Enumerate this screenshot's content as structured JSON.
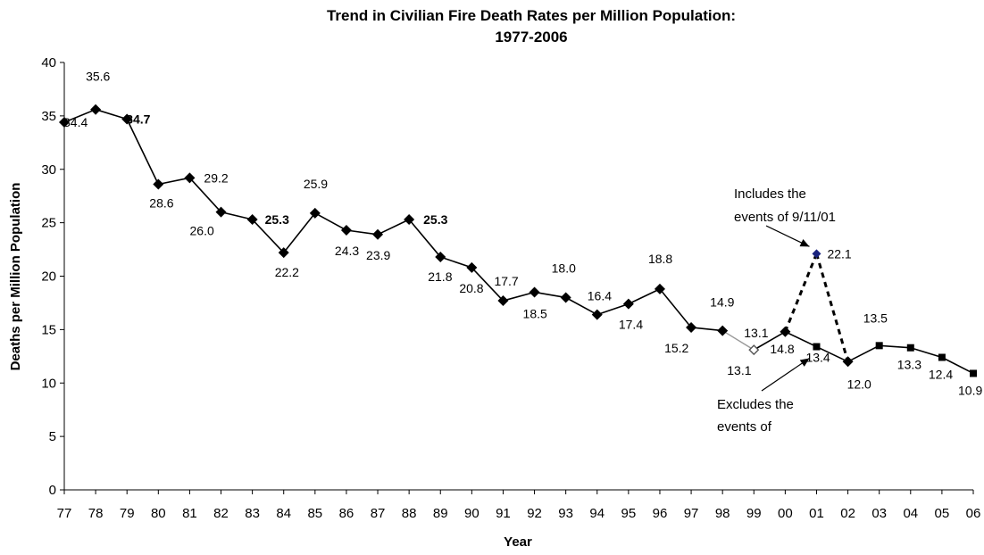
{
  "chart_data": {
    "type": "line",
    "title_lines": [
      "Trend in Civilian Fire Death Rates per Million Population:",
      "1977-2006"
    ],
    "xlabel": "Year",
    "ylabel": "Deaths per Million Population",
    "ylim": [
      0,
      40
    ],
    "yticks": [
      0,
      5,
      10,
      15,
      20,
      25,
      30,
      35,
      40
    ],
    "categories": [
      "77",
      "78",
      "79",
      "80",
      "81",
      "82",
      "83",
      "84",
      "85",
      "86",
      "87",
      "88",
      "89",
      "90",
      "91",
      "92",
      "93",
      "94",
      "95",
      "96",
      "97",
      "98",
      "99",
      "00",
      "01",
      "02",
      "03",
      "04",
      "05",
      "06"
    ],
    "series": [
      {
        "values": [
          34.4,
          35.6,
          34.7,
          28.6,
          29.2,
          26.0,
          25.3,
          22.2,
          25.9,
          24.3,
          23.9,
          25.3,
          21.8,
          20.8,
          17.7,
          18.5,
          18.0,
          16.4,
          17.4,
          18.8,
          15.2,
          14.9,
          13.1,
          14.8,
          13.4,
          12.0,
          13.5,
          13.3,
          12.4,
          10.9
        ],
        "labels": [
          "34.4",
          "35.6",
          "34.7",
          "28.6",
          "29.2",
          "26.0",
          "25.3",
          "22.2",
          "25.9",
          "24.3",
          "23.9",
          "25.3",
          "21.8",
          "20.8",
          "17.7",
          "18.5",
          "18.0",
          "16.4",
          "17.4",
          "18.8",
          "15.2",
          "14.9",
          "13.1",
          "14.8",
          "13.4",
          "12.0",
          "13.5",
          "13.3",
          "12.4",
          "10.9"
        ]
      }
    ],
    "alt_point": {
      "category": "01",
      "value": 22.1,
      "label": "22.1"
    },
    "extra_labels": [
      {
        "category": "99",
        "text": "13.1"
      }
    ],
    "annotations": [
      {
        "lines": [
          "Includes the",
          "events of 9/11/01"
        ],
        "points_to": "alt_point"
      },
      {
        "lines": [
          "Excludes the",
          "events of"
        ],
        "points_to": "01"
      }
    ],
    "grid": false,
    "legend": "none"
  }
}
